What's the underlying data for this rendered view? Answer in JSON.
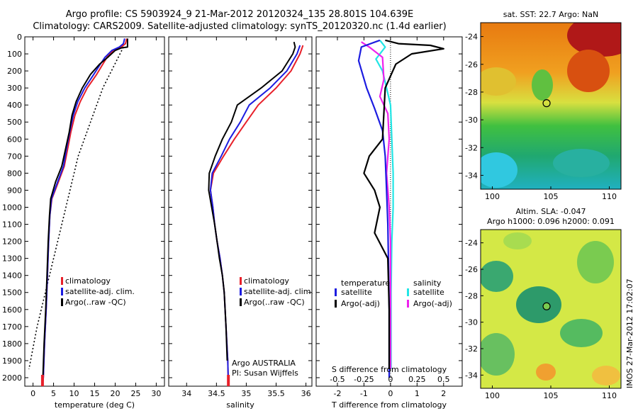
{
  "figure": {
    "title_line1": "Argo profile: CS 5903924_9 21-Mar-2012 20120324_135 28.801S 104.639E",
    "title_line2": "Climatology: CARS2009. Satellite-adjusted climatology: synTS_20120320.nc (1.4d earlier)",
    "watermark": "IMOS 27-Mar-2012 17:02:07",
    "colors": {
      "climatology": "#e8202a",
      "satellite": "#1c1ce0",
      "argo": "#000000",
      "cyan": "#22e5e5",
      "magenta": "#ee22ee"
    }
  },
  "chart_data": [
    {
      "type": "line",
      "xlabel": "temperature (deg C)",
      "xlim": [
        -2,
        32
      ],
      "ylim": [
        2050,
        0
      ],
      "xticks": [
        "0",
        "5",
        "10",
        "15",
        "20",
        "25",
        "30"
      ],
      "yticks": [
        "0",
        "100",
        "200",
        "300",
        "400",
        "500",
        "600",
        "700",
        "800",
        "900",
        "1000",
        "1100",
        "1200",
        "1300",
        "1400",
        "1500",
        "1600",
        "1700",
        "1800",
        "1900",
        "2000"
      ],
      "legend": [
        "climatology",
        "satellite-adj. clim.",
        "Argo(..raw -QC)"
      ],
      "series": [
        {
          "name": "climatology",
          "points": [
            [
              22.8,
              10
            ],
            [
              22.5,
              40
            ],
            [
              21.5,
              60
            ],
            [
              19.5,
              80
            ],
            [
              18,
              120
            ],
            [
              17,
              160
            ],
            [
              15.5,
              220
            ],
            [
              13.2,
              300
            ],
            [
              11.5,
              380
            ],
            [
              10.2,
              460
            ],
            [
              9.2,
              560
            ],
            [
              8.5,
              650
            ],
            [
              7.6,
              760
            ],
            [
              6.2,
              850
            ],
            [
              4.6,
              950
            ],
            [
              4.1,
              1050
            ],
            [
              3.8,
              1200
            ],
            [
              3.5,
              1400
            ],
            [
              3.2,
              1600
            ],
            [
              2.8,
              1800
            ],
            [
              2.5,
              2000
            ],
            [
              2.3,
              2050
            ]
          ]
        },
        {
          "name": "satellite-adj. clim.",
          "points": [
            [
              22.3,
              10
            ],
            [
              22,
              40
            ],
            [
              21,
              60
            ],
            [
              19.2,
              80
            ],
            [
              17.5,
              120
            ],
            [
              16.4,
              160
            ],
            [
              14.8,
              220
            ],
            [
              12.6,
              300
            ],
            [
              10.9,
              380
            ],
            [
              9.8,
              460
            ],
            [
              8.9,
              560
            ],
            [
              8.2,
              650
            ],
            [
              7.4,
              760
            ],
            [
              6,
              850
            ],
            [
              4.5,
              950
            ],
            [
              4.1,
              1050
            ],
            [
              3.8,
              1200
            ],
            [
              3.5,
              1400
            ],
            [
              3.2,
              1600
            ],
            [
              2.8,
              1800
            ],
            [
              2.5,
              2000
            ],
            [
              2.3,
              2050
            ]
          ]
        },
        {
          "name": "Argo(..raw -QC)",
          "points": [
            [
              23,
              10
            ],
            [
              23,
              40
            ],
            [
              23,
              60
            ],
            [
              21.5,
              65
            ],
            [
              20,
              80
            ],
            [
              18.2,
              120
            ],
            [
              16.2,
              160
            ],
            [
              14,
              220
            ],
            [
              12,
              300
            ],
            [
              10.5,
              380
            ],
            [
              9.5,
              460
            ],
            [
              8.8,
              560
            ],
            [
              8,
              650
            ],
            [
              7,
              760
            ],
            [
              5.5,
              850
            ],
            [
              4.3,
              950
            ],
            [
              4,
              1050
            ],
            [
              3.7,
              1200
            ],
            [
              3.4,
              1400
            ],
            [
              3.1,
              1600
            ],
            [
              2.7,
              1800
            ],
            [
              2.4,
              2000
            ]
          ]
        }
      ],
      "dotted_reference": [
        [
          22,
          60
        ],
        [
          17,
          300
        ],
        [
          11,
          700
        ],
        [
          6,
          1200
        ],
        [
          1,
          1700
        ],
        [
          -1,
          1950
        ]
      ]
    },
    {
      "type": "line",
      "xlabel": "salinity",
      "xlim": [
        33.7,
        36.1
      ],
      "ylim": [
        2050,
        0
      ],
      "xticks": [
        "34",
        "34.5",
        "35",
        "35.5",
        "36"
      ],
      "legend": [
        "climatology",
        "satellite-adj. clim.",
        "Argo(..raw -QC)"
      ],
      "annotation_line1": "Argo AUSTRALIA",
      "annotation_line2": "PI: Susan Wijffels",
      "series": [
        {
          "name": "climatology",
          "points": [
            [
              35.95,
              50
            ],
            [
              35.9,
              100
            ],
            [
              35.75,
              200
            ],
            [
              35.5,
              300
            ],
            [
              35.2,
              400
            ],
            [
              35,
              500
            ],
            [
              34.8,
              600
            ],
            [
              34.62,
              700
            ],
            [
              34.45,
              800
            ],
            [
              34.4,
              900
            ],
            [
              34.44,
              1000
            ],
            [
              34.47,
              1100
            ],
            [
              34.51,
              1200
            ],
            [
              34.56,
              1300
            ],
            [
              34.6,
              1400
            ],
            [
              34.63,
              1500
            ],
            [
              34.66,
              1700
            ],
            [
              34.69,
              1900
            ],
            [
              34.7,
              2050
            ]
          ]
        },
        {
          "name": "satellite-adj. clim.",
          "points": [
            [
              35.9,
              50
            ],
            [
              35.85,
              100
            ],
            [
              35.68,
              200
            ],
            [
              35.4,
              300
            ],
            [
              35.05,
              400
            ],
            [
              34.9,
              500
            ],
            [
              34.72,
              600
            ],
            [
              34.58,
              700
            ],
            [
              34.43,
              800
            ],
            [
              34.4,
              900
            ],
            [
              34.44,
              1000
            ],
            [
              34.47,
              1100
            ],
            [
              34.51,
              1200
            ],
            [
              34.56,
              1300
            ],
            [
              34.6,
              1400
            ],
            [
              34.63,
              1500
            ],
            [
              34.66,
              1700
            ],
            [
              34.69,
              1900
            ],
            [
              34.7,
              2050
            ]
          ]
        },
        {
          "name": "Argo(..raw -QC)",
          "points": [
            [
              35.8,
              30
            ],
            [
              35.82,
              60
            ],
            [
              35.78,
              100
            ],
            [
              35.6,
              200
            ],
            [
              35.25,
              300
            ],
            [
              34.85,
              400
            ],
            [
              34.75,
              500
            ],
            [
              34.6,
              600
            ],
            [
              34.48,
              700
            ],
            [
              34.38,
              800
            ],
            [
              34.37,
              900
            ],
            [
              34.42,
              1000
            ],
            [
              34.47,
              1100
            ],
            [
              34.51,
              1200
            ],
            [
              34.55,
              1300
            ],
            [
              34.6,
              1400
            ],
            [
              34.63,
              1500
            ],
            [
              34.66,
              1700
            ],
            [
              34.68,
              1900
            ]
          ]
        }
      ]
    },
    {
      "type": "line",
      "xlabel": "T difference from climatology",
      "xlabel_top": "S difference from climatology",
      "xlim": [
        -2.8,
        2.7
      ],
      "ylim": [
        2050,
        0
      ],
      "xticks": [
        "-2",
        "-1",
        "0",
        "1",
        "2"
      ],
      "xticks_top": [
        "-0.5",
        "-0.25",
        "0",
        "0.25",
        "0.5"
      ],
      "legend_temperature_title": "temperature",
      "legend_salinity_title": "salinity",
      "legend": [
        "satellite",
        "Argo(-adj)",
        "satellite",
        "Argo(-adj)"
      ],
      "series": [
        {
          "name": "temperature satellite",
          "points": [
            [
              -0.4,
              20
            ],
            [
              -1.1,
              60
            ],
            [
              -1.2,
              140
            ],
            [
              -0.9,
              300
            ],
            [
              -0.6,
              420
            ],
            [
              -0.3,
              550
            ],
            [
              -0.2,
              700
            ],
            [
              -0.15,
              900
            ],
            [
              -0.1,
              1100
            ],
            [
              -0.08,
              1300
            ],
            [
              -0.05,
              1600
            ],
            [
              -0.05,
              2000
            ]
          ]
        },
        {
          "name": "temperature Argo(-adj)",
          "points": [
            [
              -0.2,
              20
            ],
            [
              0.3,
              40
            ],
            [
              1.5,
              50
            ],
            [
              2,
              70
            ],
            [
              0.8,
              100
            ],
            [
              0.2,
              160
            ],
            [
              -0.2,
              300
            ],
            [
              -0.3,
              600
            ],
            [
              -0.8,
              700
            ],
            [
              -1.0,
              800
            ],
            [
              -0.6,
              900
            ],
            [
              -0.4,
              1000
            ],
            [
              -0.6,
              1150
            ],
            [
              -0.1,
              1300
            ],
            [
              -0.05,
              1600
            ],
            [
              -0.05,
              1950
            ]
          ]
        },
        {
          "name": "salinity satellite",
          "points": [
            [
              -0.4,
              20
            ],
            [
              -0.2,
              60
            ],
            [
              -0.55,
              130
            ],
            [
              -0.3,
              200
            ],
            [
              -0.15,
              300
            ],
            [
              0,
              400
            ],
            [
              0.05,
              600
            ],
            [
              0.1,
              800
            ],
            [
              0.1,
              1000
            ],
            [
              0.05,
              1200
            ],
            [
              0.02,
              1500
            ],
            [
              0.02,
              1950
            ]
          ]
        },
        {
          "name": "salinity Argo(-adj)",
          "points": [
            [
              -1.1,
              30
            ],
            [
              -0.8,
              60
            ],
            [
              -0.3,
              120
            ],
            [
              -0.25,
              250
            ],
            [
              -0.4,
              350
            ],
            [
              -0.1,
              450
            ],
            [
              -0.05,
              600
            ],
            [
              -0.15,
              800
            ],
            [
              -0.05,
              1000
            ],
            [
              0,
              1200
            ],
            [
              0,
              1500
            ],
            [
              0,
              1950
            ]
          ]
        }
      ]
    },
    {
      "type": "heatmap",
      "title": "sat. SST: 22.7 Argo: NaN",
      "xlim": [
        99,
        111
      ],
      "ylim": [
        -35,
        -23
      ],
      "xticks": [
        "100",
        "105",
        "110"
      ],
      "yticks": [
        "-24",
        "-26",
        "-28",
        "-30",
        "-32",
        "-34"
      ],
      "marker": [
        104.639,
        -28.801
      ]
    },
    {
      "type": "heatmap",
      "title_line1": "Altim. SLA: -0.047",
      "title_line2": "Argo h1000: 0.096 h2000: 0.091",
      "xlim": [
        99,
        111
      ],
      "ylim": [
        -35,
        -23
      ],
      "xticks": [
        "100",
        "105",
        "110"
      ],
      "yticks": [
        "-24",
        "-26",
        "-28",
        "-30",
        "-32",
        "-34"
      ],
      "marker": [
        104.639,
        -28.801
      ]
    }
  ]
}
